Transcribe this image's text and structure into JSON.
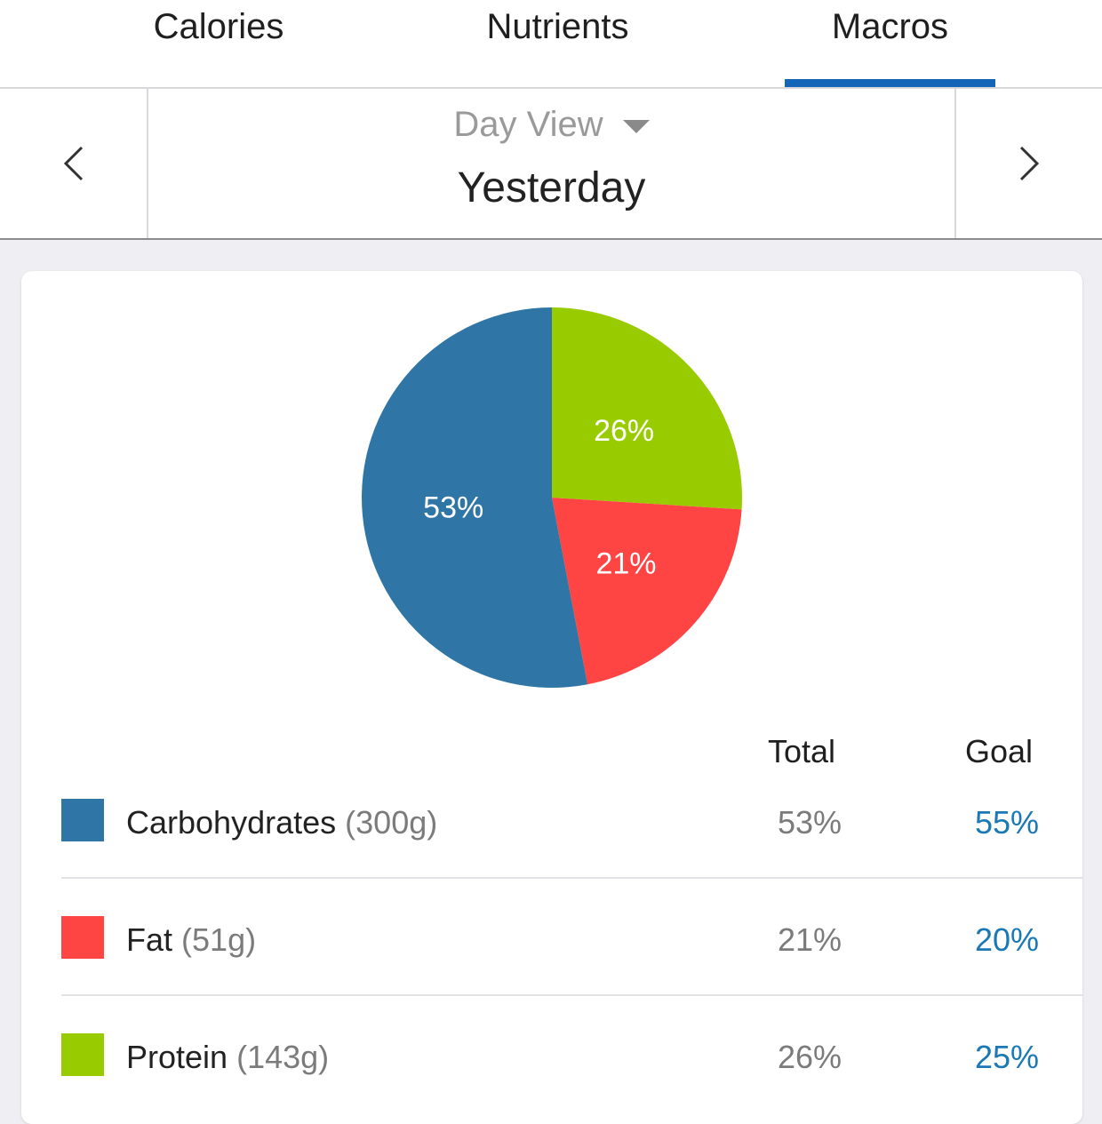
{
  "tabs": [
    {
      "label": "Calories",
      "active": false
    },
    {
      "label": "Nutrients",
      "active": false
    },
    {
      "label": "Macros",
      "active": true
    }
  ],
  "date_nav": {
    "view_label": "Day View",
    "date_label": "Yesterday"
  },
  "icons": {
    "prev": "chevron-left-icon",
    "next": "chevron-right-icon",
    "dropdown": "caret-down-icon"
  },
  "chart_data": {
    "type": "pie",
    "slices": [
      {
        "label": "Protein",
        "value": 26,
        "display": "26%",
        "color": "#99cc00"
      },
      {
        "label": "Fat",
        "value": 21,
        "display": "21%",
        "color": "#ff4444"
      },
      {
        "label": "Carbohydrates",
        "value": 53,
        "display": "53%",
        "color": "#2f76a6"
      }
    ]
  },
  "table": {
    "headers": {
      "total": "Total",
      "goal": "Goal"
    },
    "rows": [
      {
        "name": "Carbohydrates",
        "grams": "(300g)",
        "total": "53%",
        "goal": "55%",
        "color": "#2f76a6"
      },
      {
        "name": "Fat",
        "grams": "(51g)",
        "total": "21%",
        "goal": "20%",
        "color": "#ff4444"
      },
      {
        "name": "Protein",
        "grams": "(143g)",
        "total": "26%",
        "goal": "25%",
        "color": "#99cc00"
      }
    ]
  },
  "colors": {
    "accent": "#1565b8",
    "goal_text": "#1a78b4"
  }
}
